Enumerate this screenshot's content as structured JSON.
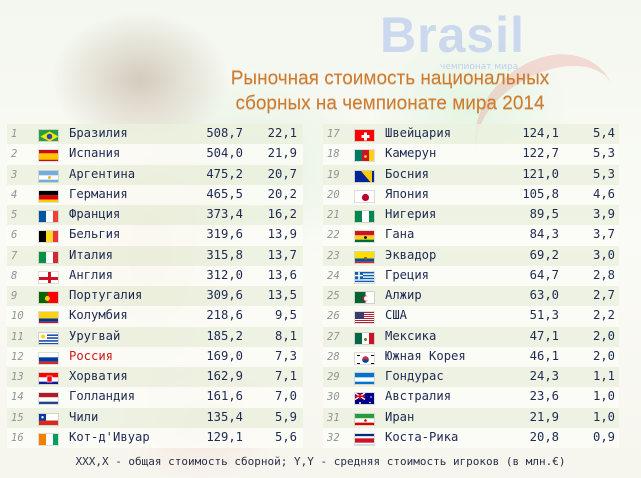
{
  "title_line1": "Рыночная  стоимость национальных",
  "title_line2": "сборных  на чемпионате мира 2014",
  "logo_text": "Brasil",
  "logo_sub": "чемпионат мира",
  "left_rows": [
    {
      "rank": "1",
      "name": "Бразилия",
      "total": "508,7",
      "avg": "22,1",
      "flag": "brazil"
    },
    {
      "rank": "2",
      "name": "Испания",
      "total": "504,0",
      "avg": "21,9",
      "flag": "spain"
    },
    {
      "rank": "3",
      "name": "Аргентина",
      "total": "475,2",
      "avg": "20,7",
      "flag": "argentina"
    },
    {
      "rank": "4",
      "name": "Германия",
      "total": "465,5",
      "avg": "20,2",
      "flag": "germany"
    },
    {
      "rank": "5",
      "name": "Франция",
      "total": "373,4",
      "avg": "16,2",
      "flag": "france"
    },
    {
      "rank": "6",
      "name": "Бельгия",
      "total": "319,6",
      "avg": "13,9",
      "flag": "belgium"
    },
    {
      "rank": "7",
      "name": "Италия",
      "total": "315,8",
      "avg": "13,7",
      "flag": "italy"
    },
    {
      "rank": "8",
      "name": "Англия",
      "total": "312,0",
      "avg": "13,6",
      "flag": "england"
    },
    {
      "rank": "9",
      "name": "Португалия",
      "total": "309,6",
      "avg": "13,5",
      "flag": "portugal"
    },
    {
      "rank": "10",
      "name": "Колумбия",
      "total": "218,6",
      "avg": "9,5",
      "flag": "colombia"
    },
    {
      "rank": "11",
      "name": "Уругвай",
      "total": "185,2",
      "avg": "8,1",
      "flag": "uruguay"
    },
    {
      "rank": "12",
      "name": "Россия",
      "total": "169,0",
      "avg": "7,3",
      "flag": "russia",
      "highlight": true
    },
    {
      "rank": "13",
      "name": "Хорватия",
      "total": "162,9",
      "avg": "7,1",
      "flag": "croatia"
    },
    {
      "rank": "14",
      "name": "Голландия",
      "total": "161,6",
      "avg": "7,0",
      "flag": "netherlands"
    },
    {
      "rank": "15",
      "name": "Чили",
      "total": "135,4",
      "avg": "5,9",
      "flag": "chile"
    },
    {
      "rank": "16",
      "name": "Кот-д'Ивуар",
      "total": "129,1",
      "avg": "5,6",
      "flag": "ivorycoast"
    }
  ],
  "right_rows": [
    {
      "rank": "17",
      "name": "Швейцария",
      "total": "124,1",
      "avg": "5,4",
      "flag": "switzerland"
    },
    {
      "rank": "18",
      "name": "Камерун",
      "total": "122,7",
      "avg": "5,3",
      "flag": "cameroon"
    },
    {
      "rank": "19",
      "name": "Босния",
      "total": "121,0",
      "avg": "5,3",
      "flag": "bosnia"
    },
    {
      "rank": "20",
      "name": "Япония",
      "total": "105,8",
      "avg": "4,6",
      "flag": "japan"
    },
    {
      "rank": "21",
      "name": "Нигерия",
      "total": "89,5",
      "avg": "3,9",
      "flag": "nigeria"
    },
    {
      "rank": "22",
      "name": "Гана",
      "total": "84,3",
      "avg": "3,7",
      "flag": "ghana"
    },
    {
      "rank": "23",
      "name": "Эквадор",
      "total": "69,2",
      "avg": "3,0",
      "flag": "ecuador"
    },
    {
      "rank": "24",
      "name": "Греция",
      "total": "64,7",
      "avg": "2,8",
      "flag": "greece"
    },
    {
      "rank": "25",
      "name": "Алжир",
      "total": "63,0",
      "avg": "2,7",
      "flag": "algeria"
    },
    {
      "rank": "26",
      "name": "США",
      "total": "51,3",
      "avg": "2,2",
      "flag": "usa"
    },
    {
      "rank": "27",
      "name": "Мексика",
      "total": "47,1",
      "avg": "2,0",
      "flag": "mexico"
    },
    {
      "rank": "28",
      "name": "Южная Корея",
      "total": "46,1",
      "avg": "2,0",
      "flag": "southkorea"
    },
    {
      "rank": "29",
      "name": "Гондурас",
      "total": "24,3",
      "avg": "1,1",
      "flag": "honduras"
    },
    {
      "rank": "30",
      "name": "Австралия",
      "total": "23,6",
      "avg": "1,0",
      "flag": "australia"
    },
    {
      "rank": "31",
      "name": "Иран",
      "total": "21,9",
      "avg": "1,0",
      "flag": "iran"
    },
    {
      "rank": "32",
      "name": "Коста-Рика",
      "total": "20,8",
      "avg": "0,9",
      "flag": "costarica"
    }
  ],
  "footnote": "XXX,X - общая стоимость сборной;  Y,Y - средняя стоимость игроков (в млн.€)"
}
